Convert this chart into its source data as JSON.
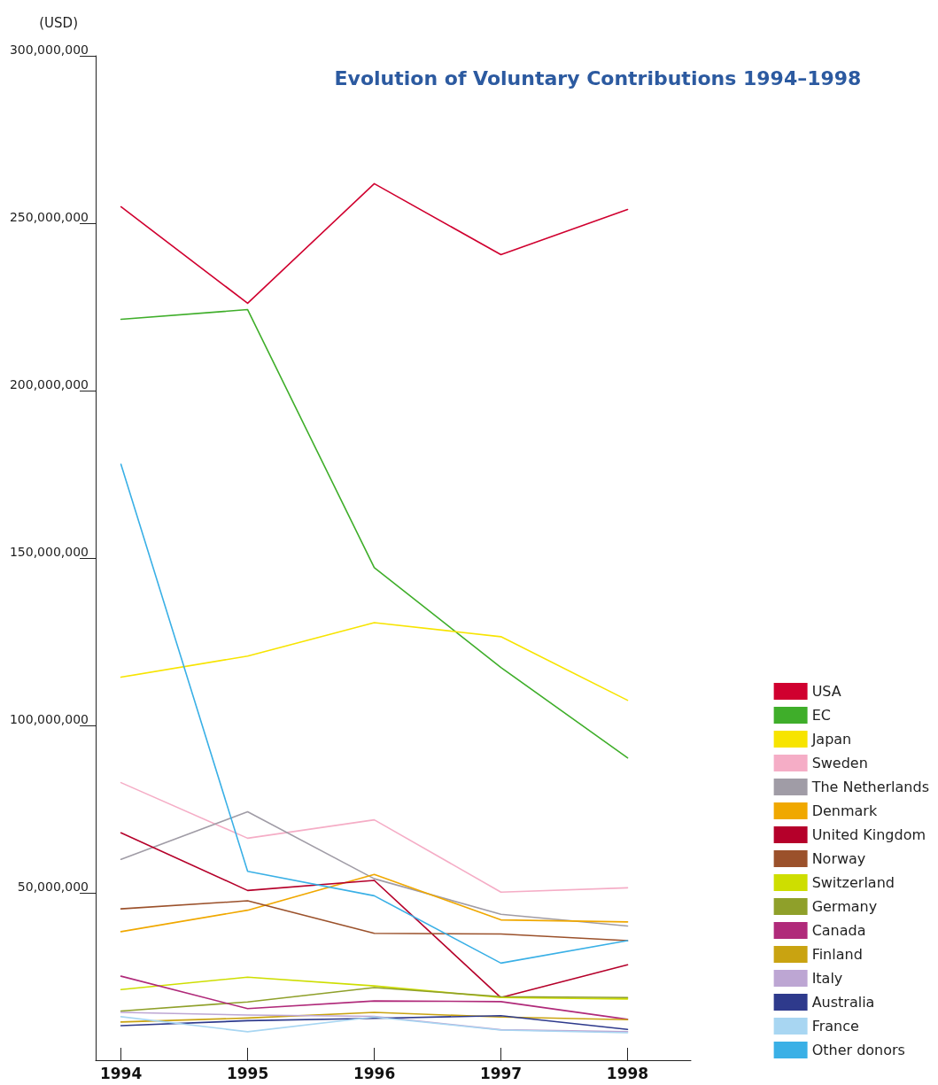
{
  "chart_data": {
    "type": "line",
    "title": "Evolution of Voluntary Contributions 1994–1998",
    "ylabel": "(USD)",
    "x": [
      1994,
      1995,
      1996,
      1997,
      1998
    ],
    "xlim": [
      1993.8,
      1998.5
    ],
    "xticks": [
      1994,
      1995,
      1996,
      1997,
      1998
    ],
    "ylim": [
      0,
      300000000
    ],
    "yticks": [
      {
        "value": 50000000,
        "label": "50,000,000"
      },
      {
        "value": 100000000,
        "label": "100,000,000"
      },
      {
        "value": 150000000,
        "label": "150,000,000"
      },
      {
        "value": 200000000,
        "label": "200,000,000"
      },
      {
        "value": 250000000,
        "label": "250,000,000"
      },
      {
        "value": 300000000,
        "label": "300,000,000"
      }
    ],
    "grid": false,
    "legend": "bottom right",
    "marker": "none",
    "line_style": "solid",
    "series": [
      {
        "name": "USA",
        "color": "#d0002f",
        "values": [
          254900000,
          226100000,
          261800000,
          240600000,
          254100000
        ]
      },
      {
        "name": "EC",
        "color": "#3fae2a",
        "values": [
          221300000,
          224200000,
          147100000,
          117300000,
          90300000
        ]
      },
      {
        "name": "Japan",
        "color": "#f7e400",
        "values": [
          114400000,
          120700000,
          130700000,
          126500000,
          107500000
        ]
      },
      {
        "name": "Sweden",
        "color": "#f5adc6",
        "values": [
          82900000,
          66300000,
          71800000,
          50200000,
          51500000
        ]
      },
      {
        "name": "The Netherlands",
        "color": "#a09ca6",
        "values": [
          60000000,
          74200000,
          54200000,
          43600000,
          40100000
        ]
      },
      {
        "name": "Denmark",
        "color": "#f0a800",
        "values": [
          38400000,
          44800000,
          55500000,
          41900000,
          41300000
        ]
      },
      {
        "name": "United Kingdom",
        "color": "#b5002a",
        "values": [
          67900000,
          50700000,
          53700000,
          18700000,
          28500000
        ]
      },
      {
        "name": "Norway",
        "color": "#9b512b",
        "values": [
          45200000,
          47600000,
          37900000,
          37700000,
          35700000
        ]
      },
      {
        "name": "Switzerland",
        "color": "#cede00",
        "values": [
          21100000,
          24800000,
          22200000,
          18700000,
          18300000
        ]
      },
      {
        "name": "Germany",
        "color": "#8fa02a",
        "values": [
          14700000,
          17400000,
          21700000,
          19000000,
          18700000
        ]
      },
      {
        "name": "Canada",
        "color": "#b02a7a",
        "values": [
          25100000,
          15400000,
          17700000,
          17500000,
          12200000
        ]
      },
      {
        "name": "Finland",
        "color": "#c9a311",
        "values": [
          11400000,
          12600000,
          14300000,
          12900000,
          12100000
        ]
      },
      {
        "name": "Italy",
        "color": "#bda6d3",
        "values": [
          14300000,
          13500000,
          13100000,
          9100000,
          8500000
        ]
      },
      {
        "name": "Australia",
        "color": "#2e3a8c",
        "values": [
          10300000,
          11800000,
          12500000,
          13300000,
          9200000
        ]
      },
      {
        "name": "France",
        "color": "#a8d6f2",
        "values": [
          13000000,
          8500000,
          12900000,
          9000000,
          8200000
        ]
      },
      {
        "name": "Other donors",
        "color": "#3ab0e6",
        "values": [
          178000000,
          56400000,
          49100000,
          29000000,
          35700000
        ]
      }
    ]
  }
}
